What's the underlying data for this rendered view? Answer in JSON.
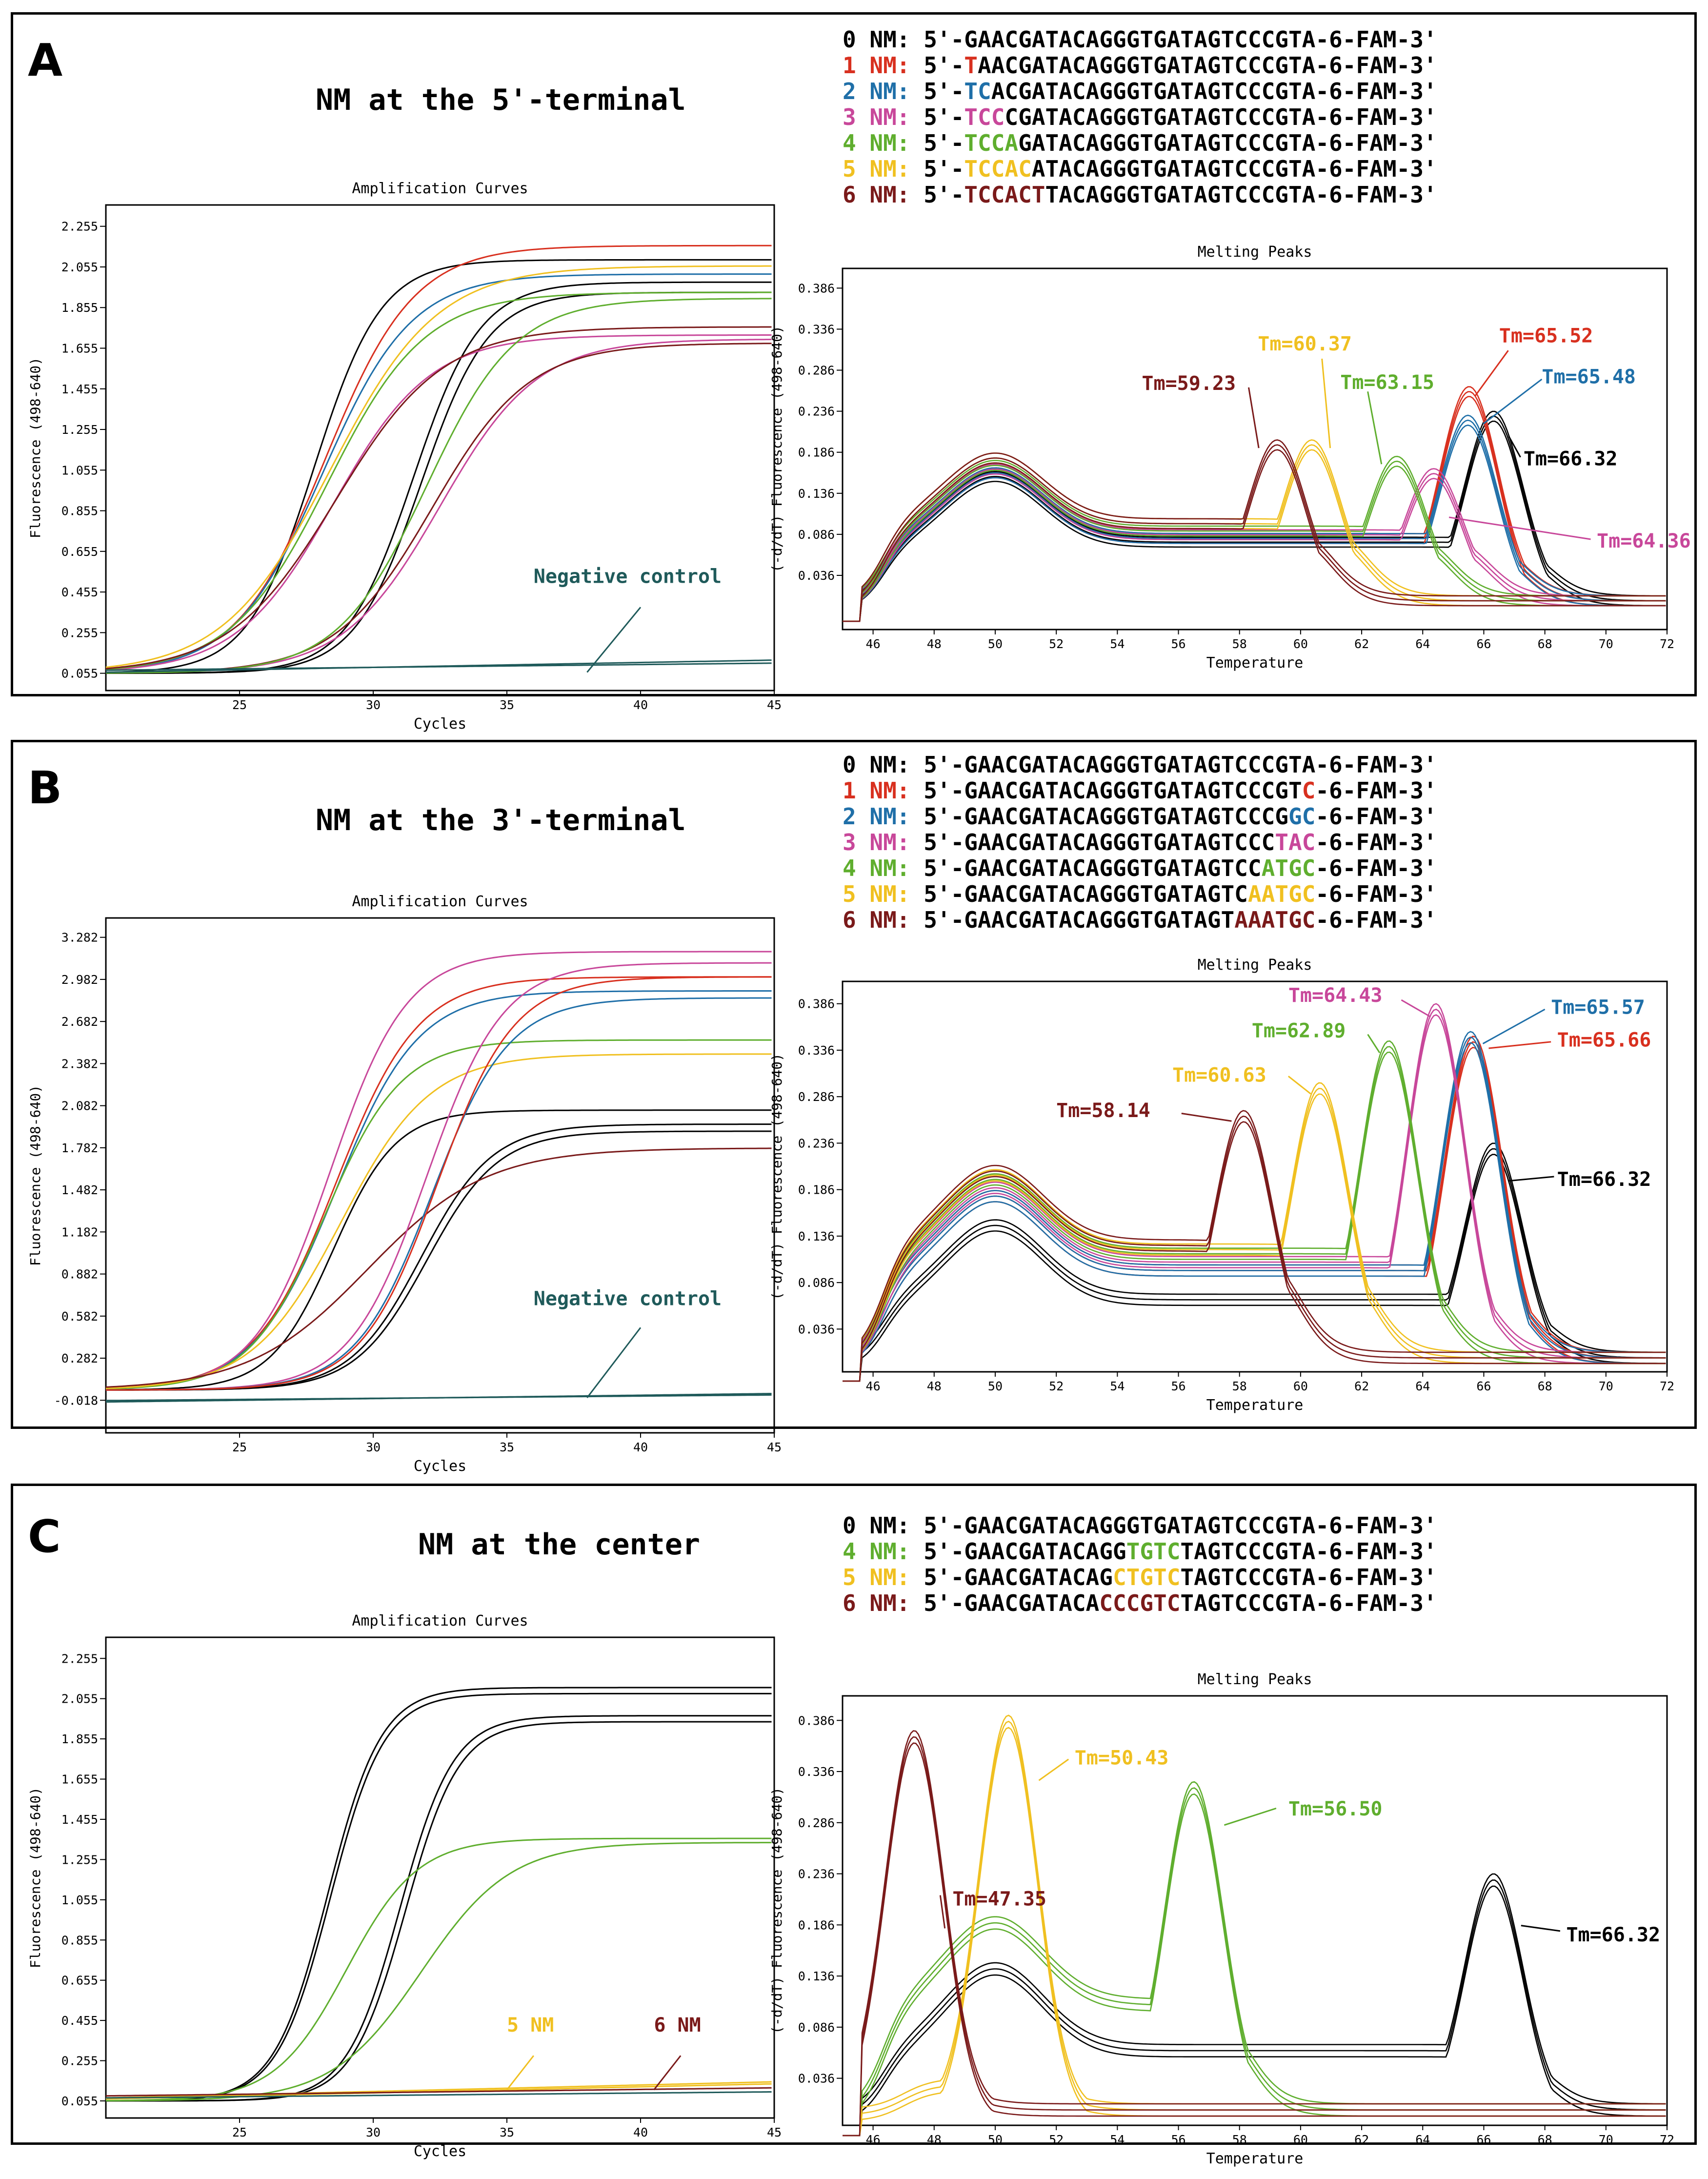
{
  "colors": {
    "0": "#000000",
    "1": "#d8301f",
    "2": "#1f6fa8",
    "3": "#c8479a",
    "4": "#5fae2e",
    "5": "#f0c020",
    "6": "#7a1a1a",
    "neg": "#1f5a5a"
  },
  "panels": [
    {
      "label": "A",
      "heading": "NM at the 5'-terminal",
      "sequences": [
        {
          "num": "0",
          "pre": "5'-",
          "mut": "",
          "post": "GAACGATACAGGGTGATAGTCCCGTA-6-FAM-3'"
        },
        {
          "num": "1",
          "pre": "5'-",
          "mut": "T",
          "post": "AACGATACAGGGTGATAGTCCCGTA-6-FAM-3'"
        },
        {
          "num": "2",
          "pre": "5'-",
          "mut": "TC",
          "post": "ACGATACAGGGTGATAGTCCCGTA-6-FAM-3'"
        },
        {
          "num": "3",
          "pre": "5'-",
          "mut": "TCC",
          "post": "CGATACAGGGTGATAGTCCCGTA-6-FAM-3'"
        },
        {
          "num": "4",
          "pre": "5'-",
          "mut": "TCCA",
          "post": "GATACAGGGTGATAGTCCCGTA-6-FAM-3'"
        },
        {
          "num": "5",
          "pre": "5'-",
          "mut": "TCCAC",
          "post": "ATACAGGGTGATAGTCCCGTA-6-FAM-3'"
        },
        {
          "num": "6",
          "pre": "5'-",
          "mut": "TCCACT",
          "post": "TACAGGGTGATAGTCCCGTA-6-FAM-3'"
        }
      ]
    },
    {
      "label": "B",
      "heading": "NM at the 3'-terminal",
      "sequences": [
        {
          "num": "0",
          "pre": "5'-GAACGATACAGGGTGATAGTCCCGTA",
          "mut": "",
          "post": "-6-FAM-3'"
        },
        {
          "num": "1",
          "pre": "5'-GAACGATACAGGGTGATAGTCCCGT",
          "mut": "C",
          "post": "-6-FAM-3'"
        },
        {
          "num": "2",
          "pre": "5'-GAACGATACAGGGTGATAGTCCCG",
          "mut": "GC",
          "post": "-6-FAM-3'"
        },
        {
          "num": "3",
          "pre": "5'-GAACGATACAGGGTGATAGTCCC",
          "mut": "TAC",
          "post": "-6-FAM-3'"
        },
        {
          "num": "4",
          "pre": "5'-GAACGATACAGGGTGATAGTCC",
          "mut": "ATGC",
          "post": "-6-FAM-3'"
        },
        {
          "num": "5",
          "pre": "5'-GAACGATACAGGGTGATAGTC",
          "mut": "AATGC",
          "post": "-6-FAM-3'"
        },
        {
          "num": "6",
          "pre": "5'-GAACGATACAGGGTGATAGT",
          "mut": "AAATGC",
          "post": "-6-FAM-3'"
        }
      ]
    },
    {
      "label": "C",
      "heading": "NM at the center",
      "sequences": [
        {
          "num": "0",
          "pre": "5'-GAACGATACAGGGTGATAGTCCCGTA-6-FAM-3'",
          "mut": "",
          "post": ""
        },
        {
          "num": "4",
          "pre": "5'-GAACGATACAGG",
          "mut": "TGTC",
          "post": "TAGTCCCGTA-6-FAM-3'"
        },
        {
          "num": "5",
          "pre": "5'-GAACGATACAG",
          "mut": "CTGTC",
          "post": "TAGTCCCGTA-6-FAM-3'"
        },
        {
          "num": "6",
          "pre": "5'-GAACGATACA",
          "mut": "CCCGTC",
          "post": "TAGTCCCGTA-6-FAM-3'"
        }
      ]
    }
  ],
  "nm_label": "NM:",
  "chart_data": [
    {
      "id": "A-amp",
      "type": "line",
      "title": "Amplification Curves",
      "xlabel": "Cycles",
      "ylabel": "Fluorescence (498-640)",
      "xlim": [
        20,
        45
      ],
      "ylim": [
        -0.03,
        2.36
      ],
      "xticks": [
        25,
        30,
        35,
        40,
        45
      ],
      "yticks": [
        "2.255",
        "2.055",
        "1.855",
        "1.655",
        "1.455",
        "1.255",
        "1.055",
        "0.855",
        "0.655",
        "0.455",
        "0.255",
        "0.055"
      ],
      "annotations": [
        {
          "text": "Negative control",
          "color": "neg"
        }
      ],
      "series": [
        {
          "name": "0 NM",
          "color": "0",
          "ct": 27.8,
          "top": 2.09,
          "k": 0.8
        },
        {
          "name": "0 NM",
          "color": "0",
          "ct": 31.5,
          "top": 1.98,
          "k": 0.8
        },
        {
          "name": "0 NM",
          "color": "0",
          "ct": 31.8,
          "top": 1.93,
          "k": 0.8
        },
        {
          "name": "1 NM",
          "color": "1",
          "ct": 28.2,
          "top": 2.16,
          "k": 0.6
        },
        {
          "name": "2 NM",
          "color": "2",
          "ct": 28.1,
          "top": 2.02,
          "k": 0.6
        },
        {
          "name": "3 NM",
          "color": "3",
          "ct": 28.5,
          "top": 1.72,
          "k": 0.55
        },
        {
          "name": "4 NM",
          "color": "4",
          "ct": 28.3,
          "top": 1.93,
          "k": 0.55
        },
        {
          "name": "5 NM",
          "color": "5",
          "ct": 28.4,
          "top": 2.06,
          "k": 0.5
        },
        {
          "name": "6 NM",
          "color": "6",
          "ct": 28.6,
          "top": 1.76,
          "k": 0.5
        },
        {
          "name": "3 NM",
          "color": "3",
          "ct": 32.5,
          "top": 1.7,
          "k": 0.55
        },
        {
          "name": "6 NM",
          "color": "6",
          "ct": 32.2,
          "top": 1.68,
          "k": 0.55
        },
        {
          "name": "4 NM",
          "color": "4",
          "ct": 32.0,
          "top": 1.9,
          "k": 0.6
        },
        {
          "name": "Negative control",
          "color": "neg",
          "flat": [
            0.07,
            0.105
          ]
        },
        {
          "name": "Negative control",
          "color": "neg",
          "flat": [
            0.06,
            0.12
          ]
        }
      ]
    },
    {
      "id": "A-melt",
      "type": "line",
      "title": "Melting Peaks",
      "xlabel": "Temperature",
      "ylabel": "(-d/dT) Fluorescence (498-640)",
      "xlim": [
        45,
        72
      ],
      "ylim": [
        -0.03,
        0.41
      ],
      "xticks": [
        46,
        48,
        50,
        52,
        54,
        56,
        58,
        60,
        62,
        64,
        66,
        68,
        70,
        72
      ],
      "yticks": [
        "0.386",
        "0.336",
        "0.286",
        "0.236",
        "0.186",
        "0.136",
        "0.086",
        "0.036"
      ],
      "peaks": [
        {
          "label": "Tm=66.32",
          "color": "0",
          "tm": 66.32,
          "h": 0.23,
          "base": 0.085
        },
        {
          "label": "Tm=65.52",
          "color": "1",
          "tm": 65.52,
          "h": 0.26,
          "base": 0.09
        },
        {
          "label": "Tm=65.48",
          "color": "2",
          "tm": 65.48,
          "h": 0.225,
          "base": 0.09
        },
        {
          "label": "Tm=64.36",
          "color": "3",
          "tm": 64.36,
          "h": 0.16,
          "base": 0.095
        },
        {
          "label": "Tm=63.15",
          "color": "4",
          "tm": 63.15,
          "h": 0.175,
          "base": 0.1
        },
        {
          "label": "Tm=60.37",
          "color": "5",
          "tm": 60.37,
          "h": 0.195,
          "base": 0.11
        },
        {
          "label": "Tm=59.23",
          "color": "6",
          "tm": 59.23,
          "h": 0.195,
          "base": 0.11
        }
      ]
    },
    {
      "id": "B-amp",
      "type": "line",
      "title": "Amplification Curves",
      "xlabel": "Cycles",
      "ylabel": "Fluorescence (498-640)",
      "xlim": [
        20,
        45
      ],
      "ylim": [
        -0.25,
        3.42
      ],
      "xticks": [
        25,
        30,
        35,
        40,
        45
      ],
      "yticks": [
        "3.282",
        "2.982",
        "2.682",
        "2.382",
        "2.082",
        "1.782",
        "1.482",
        "1.182",
        "0.882",
        "0.582",
        "0.282",
        "-0.018"
      ],
      "annotations": [
        {
          "text": "Negative control",
          "color": "neg"
        }
      ],
      "series": [
        {
          "name": "0 NM",
          "color": "0",
          "ct": 28.5,
          "top": 2.05,
          "k": 0.85
        },
        {
          "name": "0 NM",
          "color": "0",
          "ct": 31.8,
          "top": 1.95,
          "k": 0.75
        },
        {
          "name": "0 NM",
          "color": "0",
          "ct": 32.0,
          "top": 1.9,
          "k": 0.75
        },
        {
          "name": "1 NM",
          "color": "1",
          "ct": 28.6,
          "top": 3.0,
          "k": 0.65
        },
        {
          "name": "2 NM",
          "color": "2",
          "ct": 28.6,
          "top": 2.9,
          "k": 0.65
        },
        {
          "name": "3 NM",
          "color": "3",
          "ct": 28.4,
          "top": 3.18,
          "k": 0.7
        },
        {
          "name": "4 NM",
          "color": "4",
          "ct": 28.2,
          "top": 2.55,
          "k": 0.7
        },
        {
          "name": "5 NM",
          "color": "5",
          "ct": 28.8,
          "top": 2.45,
          "k": 0.6
        },
        {
          "name": "6 NM",
          "color": "6",
          "ct": 29.8,
          "top": 1.78,
          "k": 0.45
        },
        {
          "name": "3 NM",
          "color": "3",
          "ct": 32.0,
          "top": 3.1,
          "k": 0.7
        },
        {
          "name": "2 NM",
          "color": "2",
          "ct": 32.2,
          "top": 2.85,
          "k": 0.7
        },
        {
          "name": "1 NM",
          "color": "1",
          "ct": 32.4,
          "top": 3.0,
          "k": 0.7
        },
        {
          "name": "Negative control",
          "color": "neg",
          "flat": [
            -0.02,
            0.02
          ]
        },
        {
          "name": "Negative control",
          "color": "neg",
          "flat": [
            -0.03,
            0.03
          ]
        }
      ]
    },
    {
      "id": "B-melt",
      "type": "line",
      "title": "Melting Peaks",
      "xlabel": "Temperature",
      "ylabel": "(-d/dT) Fluorescence (498-640)",
      "xlim": [
        45,
        72
      ],
      "ylim": [
        -0.01,
        0.41
      ],
      "xticks": [
        46,
        48,
        50,
        52,
        54,
        56,
        58,
        60,
        62,
        64,
        66,
        68,
        70,
        72
      ],
      "yticks": [
        "0.386",
        "0.336",
        "0.286",
        "0.236",
        "0.186",
        "0.136",
        "0.086",
        "0.036"
      ],
      "peaks": [
        {
          "label": "Tm=66.32",
          "color": "0",
          "tm": 66.32,
          "h": 0.23,
          "base": 0.075
        },
        {
          "label": "Tm=65.66",
          "color": "1",
          "tm": 65.66,
          "h": 0.345,
          "base": 0.11
        },
        {
          "label": "Tm=65.57",
          "color": "2",
          "tm": 65.57,
          "h": 0.35,
          "base": 0.11
        },
        {
          "label": "Tm=64.43",
          "color": "3",
          "tm": 64.43,
          "h": 0.38,
          "base": 0.12
        },
        {
          "label": "Tm=62.89",
          "color": "4",
          "tm": 62.89,
          "h": 0.34,
          "base": 0.13
        },
        {
          "label": "Tm=60.63",
          "color": "5",
          "tm": 60.63,
          "h": 0.295,
          "base": 0.135
        },
        {
          "label": "Tm=58.14",
          "color": "6",
          "tm": 58.14,
          "h": 0.265,
          "base": 0.14
        }
      ]
    },
    {
      "id": "C-amp",
      "type": "line",
      "title": "Amplification Curves",
      "xlabel": "Cycles",
      "ylabel": "Fluorescence (498-640)",
      "xlim": [
        20,
        45
      ],
      "ylim": [
        -0.03,
        2.36
      ],
      "xticks": [
        25,
        30,
        35,
        40,
        45
      ],
      "yticks": [
        "2.255",
        "2.055",
        "1.855",
        "1.655",
        "1.455",
        "1.255",
        "1.055",
        "0.855",
        "0.655",
        "0.455",
        "0.255",
        "0.055"
      ],
      "annotations": [
        {
          "text": "5 NM",
          "color": "5"
        },
        {
          "text": "6 NM",
          "color": "6"
        }
      ],
      "series": [
        {
          "name": "0 NM",
          "color": "0",
          "ct": 28.3,
          "top": 2.11,
          "k": 1.0
        },
        {
          "name": "0 NM",
          "color": "0",
          "ct": 28.4,
          "top": 2.08,
          "k": 1.0
        },
        {
          "name": "0 NM",
          "color": "0",
          "ct": 31.0,
          "top": 1.97,
          "k": 1.0
        },
        {
          "name": "0 NM",
          "color": "0",
          "ct": 31.2,
          "top": 1.94,
          "k": 1.0
        },
        {
          "name": "4 NM",
          "color": "4",
          "ct": 29.0,
          "top": 1.36,
          "k": 0.75
        },
        {
          "name": "4 NM",
          "color": "4",
          "ct": 31.8,
          "top": 1.34,
          "k": 0.6
        },
        {
          "name": "5 NM",
          "color": "5",
          "flat": [
            0.065,
            0.14
          ]
        },
        {
          "name": "5 NM",
          "color": "5",
          "flat": [
            0.07,
            0.15
          ]
        },
        {
          "name": "6 NM",
          "color": "6",
          "flat": [
            0.08,
            0.12
          ]
        },
        {
          "name": "Negative control",
          "color": "neg",
          "flat": [
            0.07,
            0.1
          ]
        }
      ]
    },
    {
      "id": "C-melt",
      "type": "line",
      "title": "Melting Peaks",
      "xlabel": "Temperature",
      "ylabel": "(-d/dT) Fluorescence (498-640)",
      "xlim": [
        45,
        72
      ],
      "ylim": [
        -0.01,
        0.41
      ],
      "xticks": [
        46,
        48,
        50,
        52,
        54,
        56,
        58,
        60,
        62,
        64,
        66,
        68,
        70,
        72
      ],
      "yticks": [
        "0.386",
        "0.336",
        "0.286",
        "0.236",
        "0.186",
        "0.136",
        "0.086",
        "0.036"
      ],
      "peaks": [
        {
          "label": "Tm=66.32",
          "color": "0",
          "tm": 66.32,
          "h": 0.23,
          "base": 0.07
        },
        {
          "label": "Tm=56.50",
          "color": "4",
          "tm": 56.5,
          "h": 0.32,
          "base": 0.12
        },
        {
          "label": "Tm=50.43",
          "color": "5",
          "tm": 50.43,
          "h": 0.385,
          "base": 0.0
        },
        {
          "label": "Tm=47.35",
          "color": "6",
          "tm": 47.35,
          "h": 0.37,
          "base": 0.0
        }
      ]
    }
  ]
}
